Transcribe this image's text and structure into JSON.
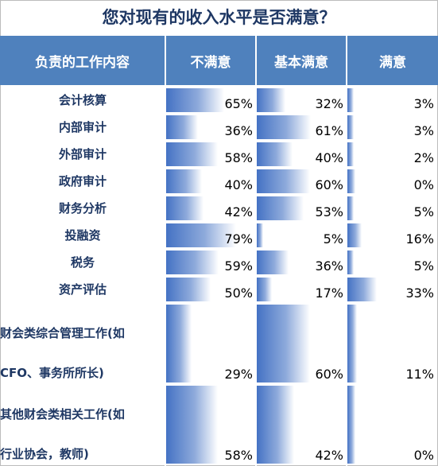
{
  "title": "您对现有的收入水平是否满意？",
  "chart_data": {
    "type": "bar",
    "headers": [
      "负责的工作内容",
      "不满意",
      "基本满意",
      "满意"
    ],
    "categories": [
      "会计核算",
      "内部审计",
      "外部审计",
      "政府审计",
      "财务分析",
      "投融资",
      "税务",
      "资产评估",
      "财会类综合管理工作(如CFO、事务所所长)",
      "其他财会类相关工作(如行业协会，教师)"
    ],
    "category_lines": [
      [
        "会计核算"
      ],
      [
        "内部审计"
      ],
      [
        "外部审计"
      ],
      [
        "政府审计"
      ],
      [
        "财务分析"
      ],
      [
        "投融资"
      ],
      [
        "税务"
      ],
      [
        "资产评估"
      ],
      [
        "财会类综合管理工作(如",
        "CFO、事务所所长)"
      ],
      [
        "其他财会类相关工作(如",
        "行业协会，教师)"
      ]
    ],
    "series": [
      {
        "name": "不满意",
        "values": [
          65,
          36,
          58,
          40,
          42,
          79,
          59,
          50,
          29,
          58
        ]
      },
      {
        "name": "基本满意",
        "values": [
          32,
          61,
          40,
          60,
          53,
          5,
          36,
          17,
          60,
          42
        ]
      },
      {
        "name": "满意",
        "values": [
          3,
          3,
          2,
          0,
          5,
          16,
          5,
          33,
          11,
          0
        ]
      }
    ],
    "unit": "%",
    "colors": {
      "header": "#4f81bd",
      "bar": "#4472c4",
      "category_text": "#1f3864"
    }
  }
}
